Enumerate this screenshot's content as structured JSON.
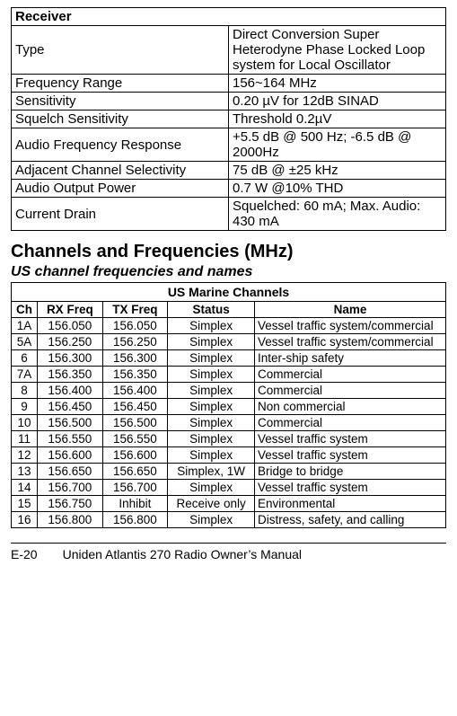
{
  "receiver": {
    "header": "Receiver",
    "rows": [
      {
        "label": "Type",
        "value": "Direct Conversion Super Heterodyne Phase Locked Loop system for Local Oscillator"
      },
      {
        "label": "Frequency Range",
        "value": "156~164 MHz"
      },
      {
        "label": "Sensitivity",
        "value": " 0.20 µV for 12dB SINAD"
      },
      {
        "label": "Squelch Sensitivity",
        "value": "Threshold 0.2µV"
      },
      {
        "label": "Audio Frequency Response",
        "value": "+5.5 dB @ 500 Hz;  -6.5 dB @ 2000Hz"
      },
      {
        "label": "Adjacent Channel Selectivity",
        "value": "75 dB @ ±25 kHz"
      },
      {
        "label": "Audio Output Power",
        "value": "0.7 W @10% THD"
      },
      {
        "label": "Current Drain",
        "value": "Squelched: 60 mA;   Max. Audio: 430 mA"
      }
    ]
  },
  "channels": {
    "section_title": "Channels and Frequencies (MHz)",
    "subheading": "US channel frequencies and names",
    "table_title": "US Marine Channels",
    "columns": {
      "ch": "Ch",
      "rx": "RX Freq",
      "tx": "TX Freq",
      "status": "Status",
      "name": "Name"
    },
    "rows": [
      {
        "ch": "1A",
        "rx": "156.050",
        "tx": "156.050",
        "status": "Simplex",
        "name": "Vessel traffic system/commercial"
      },
      {
        "ch": "5A",
        "rx": "156.250",
        "tx": "156.250",
        "status": "Simplex",
        "name": "Vessel traffic system/commercial"
      },
      {
        "ch": "6",
        "rx": "156.300",
        "tx": "156.300",
        "status": "Simplex",
        "name": "Inter-ship safety"
      },
      {
        "ch": "7A",
        "rx": "156.350",
        "tx": "156.350",
        "status": "Simplex",
        "name": "Commercial"
      },
      {
        "ch": "8",
        "rx": "156.400",
        "tx": "156.400",
        "status": "Simplex",
        "name": "Commercial"
      },
      {
        "ch": "9",
        "rx": "156.450",
        "tx": "156.450",
        "status": "Simplex",
        "name": "Non commercial"
      },
      {
        "ch": "10",
        "rx": "156.500",
        "tx": "156.500",
        "status": "Simplex",
        "name": "Commercial"
      },
      {
        "ch": "11",
        "rx": "156.550",
        "tx": "156.550",
        "status": "Simplex",
        "name": "Vessel traffic system"
      },
      {
        "ch": "12",
        "rx": "156.600",
        "tx": "156.600",
        "status": "Simplex",
        "name": "Vessel traffic system"
      },
      {
        "ch": "13",
        "rx": "156.650",
        "tx": "156.650",
        "status": "Simplex, 1W",
        "name": "Bridge to bridge"
      },
      {
        "ch": "14",
        "rx": "156.700",
        "tx": "156.700",
        "status": "Simplex",
        "name": "Vessel traffic system"
      },
      {
        "ch": "15",
        "rx": "156.750",
        "tx": "Inhibit",
        "status": "Receive only",
        "name": "Environmental"
      },
      {
        "ch": "16",
        "rx": "156.800",
        "tx": "156.800",
        "status": "Simplex",
        "name": "Distress, safety, and calling"
      }
    ]
  },
  "footer": {
    "page": "E-20",
    "manual": "Uniden Atlantis 270 Radio Owner’s Manual"
  }
}
